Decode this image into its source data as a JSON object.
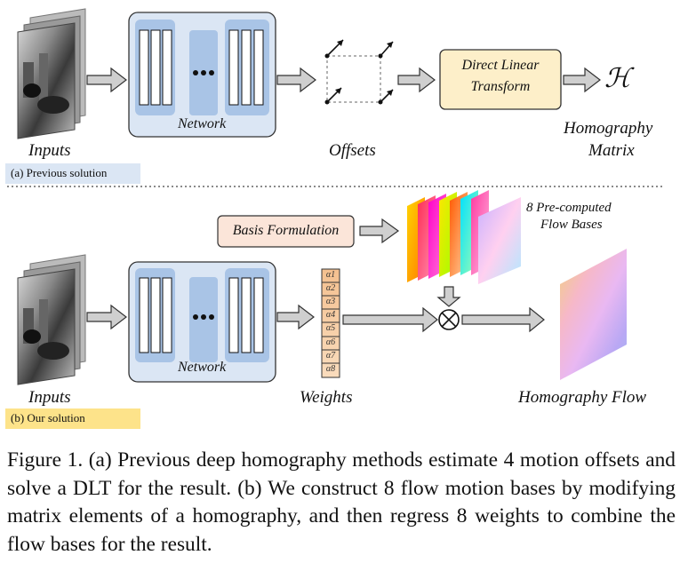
{
  "top": {
    "inputs_label": "Inputs",
    "network_label": "Network",
    "offsets_label": "Offsets",
    "dlt_line1": "Direct Linear",
    "dlt_line2": "Transform",
    "h_symbol": "ℋ",
    "homography_line1": "Homography",
    "homography_line2": "Matrix",
    "tag": "(a) Previous solution"
  },
  "bottom": {
    "basis_label": "Basis Formulation",
    "bases_line1": "8 Pre-computed",
    "bases_line2": "Flow Bases",
    "inputs_label": "Inputs",
    "network_label": "Network",
    "weights_label": "Weights",
    "flow_label": "Homography Flow",
    "tag": "(b) Our solution",
    "alphas": [
      "α1",
      "α2",
      "α3",
      "α4",
      "α5",
      "α6",
      "α7",
      "α8"
    ]
  },
  "caption": "Figure 1. (a) Previous deep homography methods estimate 4 motion offsets and solve a DLT for the result. (b) We construct 8 flow motion bases by modifying matrix elements of a homography, and then regress 8 weights to combine the flow bases for the result.",
  "colors": {
    "network_bg": "#dbe6f4",
    "layer_fill": "#a9c4e6",
    "dlt_fill": "#fdefc9",
    "basis_fill": "#fbe5d9",
    "tag_a": "#dbe6f4",
    "tag_b": "#fde38a",
    "weights_fill": "#f7cfa8"
  }
}
